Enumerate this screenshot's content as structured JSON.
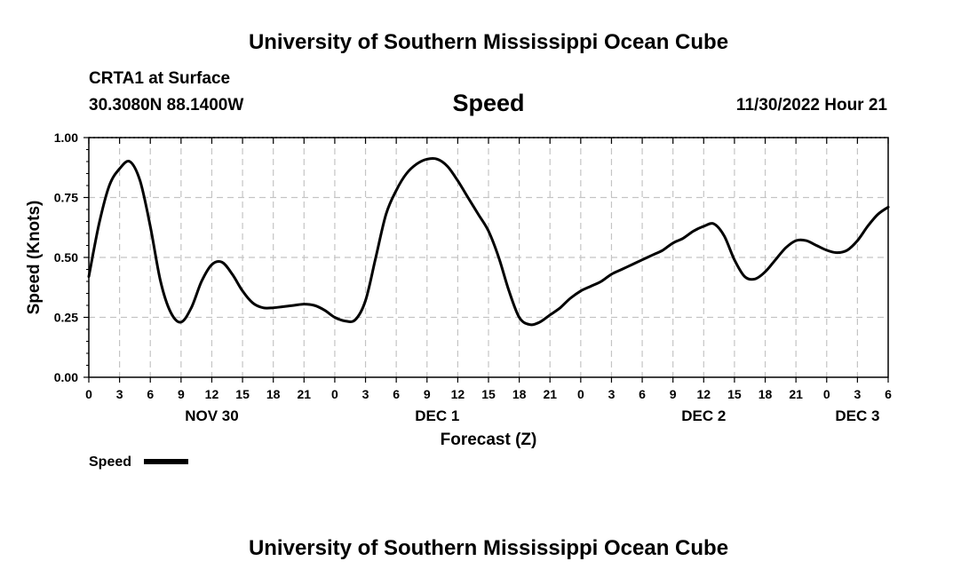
{
  "header": {
    "title": "University of Southern Mississippi Ocean Cube",
    "station": "CRTA1 at Surface",
    "coords": "30.3080N  88.1400W",
    "variable": "Speed",
    "timestamp": "11/30/2022 Hour 21",
    "footer_title": "University of Southern Mississippi Ocean Cube"
  },
  "chart_data": {
    "type": "line",
    "title": "Speed",
    "xlabel": "Forecast (Z)",
    "ylabel": "Speed (Knots)",
    "ylim": [
      0,
      1
    ],
    "x_unit": "hours since NOV 30 00Z",
    "xlim": [
      0,
      78
    ],
    "y_ticks": [
      "0.00",
      "0.25",
      "0.50",
      "0.75",
      "1.00"
    ],
    "x_ticks": [
      "0",
      "3",
      "6",
      "9",
      "12",
      "15",
      "18",
      "21",
      "0",
      "3",
      "6",
      "9",
      "12",
      "15",
      "18",
      "21",
      "0",
      "3",
      "6",
      "9",
      "12",
      "15",
      "18",
      "21",
      "0",
      "3",
      "6"
    ],
    "day_labels": [
      {
        "label": "NOV 30",
        "hour": 12
      },
      {
        "label": "DEC 1",
        "hour": 34
      },
      {
        "label": "DEC 2",
        "hour": 60
      },
      {
        "label": "DEC 3",
        "hour": 75
      }
    ],
    "grid": true,
    "legend": "bottom-left",
    "line_color": "#000000",
    "series": [
      {
        "name": "Speed",
        "x": [
          0,
          1,
          2,
          3,
          4,
          5,
          6,
          7,
          8,
          9,
          10,
          11,
          12,
          13,
          14,
          15,
          16,
          17,
          18,
          19,
          20,
          21,
          22,
          23,
          24,
          25,
          26,
          27,
          28,
          29,
          30,
          31,
          32,
          33,
          34,
          35,
          36,
          37,
          38,
          39,
          40,
          41,
          42,
          43,
          44,
          45,
          46,
          47,
          48,
          49,
          50,
          51,
          52,
          53,
          54,
          55,
          56,
          57,
          58,
          59,
          60,
          61,
          62,
          63,
          64,
          65,
          66,
          67,
          68,
          69,
          70,
          71,
          72,
          73,
          74,
          75,
          76,
          77,
          78
        ],
        "values": [
          0.42,
          0.64,
          0.8,
          0.87,
          0.9,
          0.82,
          0.63,
          0.4,
          0.27,
          0.23,
          0.29,
          0.4,
          0.47,
          0.48,
          0.43,
          0.36,
          0.31,
          0.29,
          0.29,
          0.295,
          0.3,
          0.305,
          0.3,
          0.28,
          0.25,
          0.235,
          0.24,
          0.32,
          0.5,
          0.68,
          0.78,
          0.85,
          0.89,
          0.91,
          0.91,
          0.88,
          0.82,
          0.75,
          0.68,
          0.61,
          0.5,
          0.36,
          0.25,
          0.22,
          0.23,
          0.26,
          0.29,
          0.33,
          0.36,
          0.38,
          0.4,
          0.43,
          0.45,
          0.47,
          0.49,
          0.51,
          0.53,
          0.56,
          0.58,
          0.61,
          0.63,
          0.64,
          0.59,
          0.49,
          0.42,
          0.41,
          0.44,
          0.49,
          0.54,
          0.57,
          0.57,
          0.55,
          0.53,
          0.52,
          0.53,
          0.57,
          0.63,
          0.68,
          0.71
        ]
      }
    ]
  }
}
